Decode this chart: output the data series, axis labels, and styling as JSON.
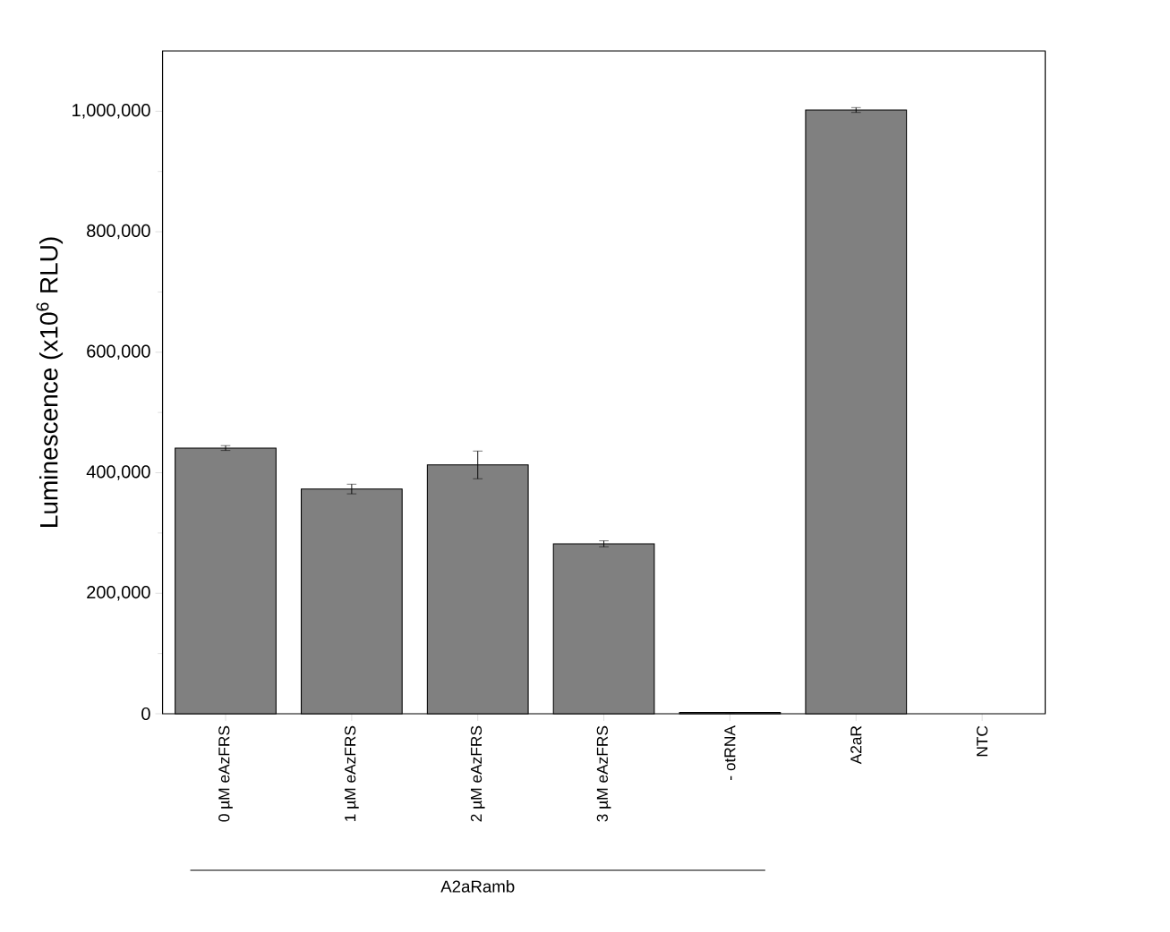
{
  "chart_data": {
    "type": "bar",
    "ylabel": "Luminescence (x10$^{6}$ RLU)",
    "categories": [
      "0 µM eAzFRS",
      "1 µM eAzFRS",
      "2 µM eAzFRS",
      "3 µM eAzFRS",
      "- otRNA",
      "A2aR",
      "NTC"
    ],
    "values": [
      441000,
      373000,
      413000,
      282000,
      2000,
      1002000,
      null
    ],
    "errors": [
      4000,
      8000,
      23000,
      5000,
      null,
      4000,
      null
    ],
    "color": "#808080",
    "ylim": [
      0,
      1100000
    ],
    "yticks": [
      {
        "value": 0,
        "label": "0"
      },
      {
        "value": 200000,
        "label": "200,000"
      },
      {
        "value": 400000,
        "label": "400,000"
      },
      {
        "value": 600000,
        "label": "600,000"
      },
      {
        "value": 800000,
        "label": "800,000"
      },
      {
        "value": 1000000,
        "label": "1,000,000"
      }
    ],
    "grid": false,
    "annotations": [
      "A2aRamb"
    ]
  }
}
